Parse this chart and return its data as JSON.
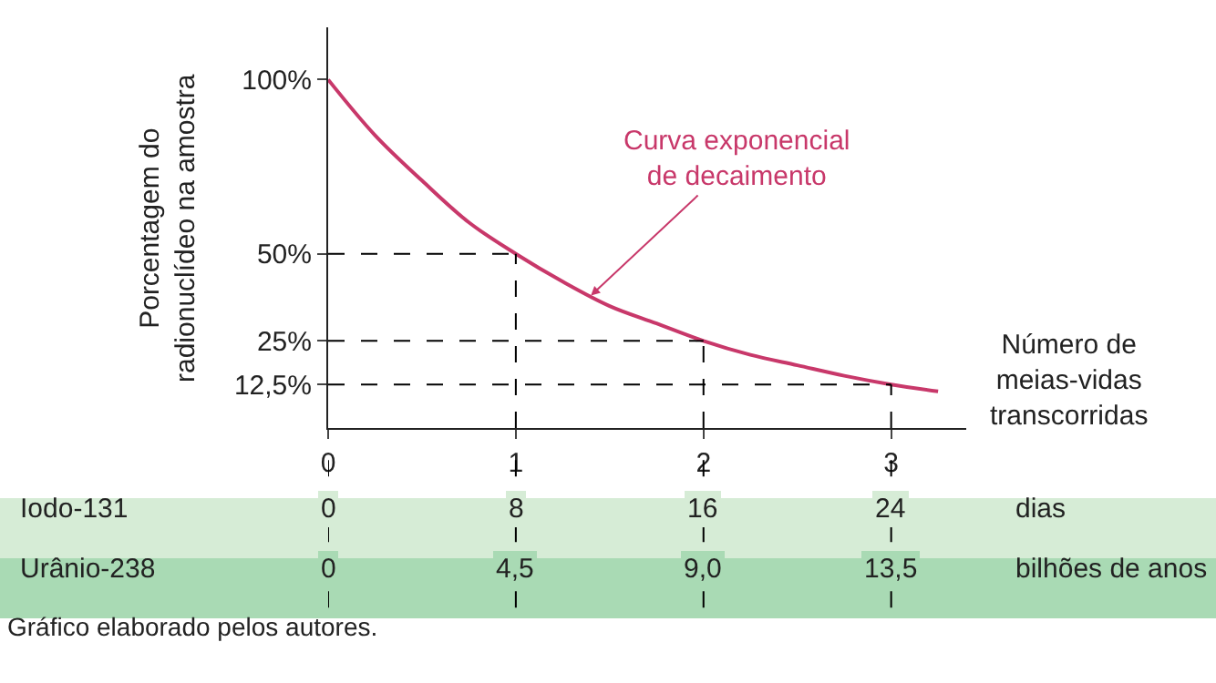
{
  "chart_data": {
    "type": "line",
    "ylabel": "Porcentagem do\nradionuclídeo na amostra",
    "xlabel": "Número de\nmeias-vidas\ntranscorridas",
    "x": [
      0,
      0.25,
      0.5,
      0.75,
      1,
      1.25,
      1.5,
      1.75,
      2,
      2.25,
      2.5,
      2.75,
      3,
      3.25
    ],
    "series": [
      {
        "color": "#c8386a",
        "values": [
          100,
          84,
          71,
          59,
          50,
          42,
          35,
          30,
          25,
          21,
          18,
          15,
          12.5,
          10.5
        ]
      }
    ],
    "xlim": [
      0,
      3.4
    ],
    "ylim": [
      0,
      115
    ],
    "xticks": [
      0,
      1,
      2,
      3
    ],
    "yticks": [
      {
        "value": 100,
        "label": "100%"
      },
      {
        "value": 50,
        "label": "50%"
      },
      {
        "value": 25,
        "label": "25%"
      },
      {
        "value": 12.5,
        "label": "12,5%"
      }
    ],
    "ref_lines": [
      {
        "axis": "y",
        "value": 50,
        "line_style": "dashed",
        "color": "#000000"
      },
      {
        "axis": "x",
        "value": 1,
        "line_style": "dashed",
        "color": "#000000"
      },
      {
        "axis": "y",
        "value": 25,
        "line_style": "dashed",
        "color": "#000000"
      },
      {
        "axis": "x",
        "value": 2,
        "line_style": "dashed",
        "color": "#000000"
      },
      {
        "axis": "y",
        "value": 12.5,
        "line_style": "dashed",
        "color": "#000000"
      },
      {
        "axis": "x",
        "value": 3,
        "line_style": "dashed",
        "color": "#000000"
      }
    ],
    "annotations": [
      {
        "text": "Curva exponencial\nde decaimento",
        "x": 1.4,
        "y": 38
      },
      "Iodo-131",
      "0",
      "8",
      "16",
      "24",
      "dias",
      "Urânio-238",
      "0",
      "4,5",
      "9,0",
      "13,5",
      "bilhões de anos",
      "Gráfico elaborado pelos autores."
    ],
    "marker": "none",
    "line_style": "solid"
  }
}
